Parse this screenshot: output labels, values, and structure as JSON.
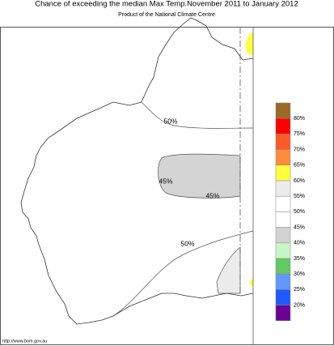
{
  "header": {
    "title": "Chance of exceeding the median Max Temp.November 2011 to January 2012",
    "subtitle": "Product of the National Climate Centre"
  },
  "map": {
    "contour_labels": [
      "50%",
      "45%",
      "45%",
      "50%"
    ]
  },
  "legend": {
    "labels": [
      "80%",
      "75%",
      "70%",
      "65%",
      "60%",
      "55%",
      "50%",
      "45%",
      "40%",
      "35%",
      "30%",
      "25%",
      "20%"
    ],
    "colors": [
      "#9c6a28",
      "#ff0000",
      "#ff5a28",
      "#ff8c3c",
      "#ffff3c",
      "#ececec",
      "#ffffff",
      "#ffffff",
      "#d2d2d2",
      "#c8f5c8",
      "#64c864",
      "#6496ff",
      "#1e5aff",
      "#6a0096"
    ]
  },
  "footer": {
    "url": "http://www.bom.gov.au"
  }
}
